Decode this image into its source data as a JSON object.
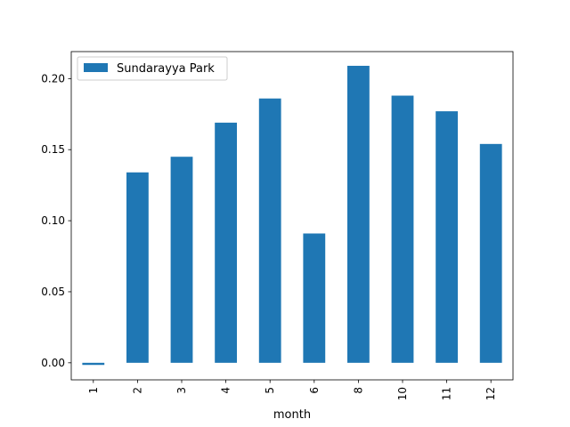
{
  "chart_data": {
    "type": "bar",
    "categories": [
      "1",
      "2",
      "3",
      "4",
      "5",
      "6",
      "8",
      "10",
      "11",
      "12"
    ],
    "series": [
      {
        "name": "Sundarayya Park",
        "values": [
          -0.0015,
          0.134,
          0.145,
          0.169,
          0.186,
          0.091,
          0.209,
          0.188,
          0.177,
          0.154
        ],
        "color": "#1f77b4"
      }
    ],
    "xlabel": "month",
    "ylabel": "",
    "ylim": [
      -0.012,
      0.219
    ],
    "yticks": [
      0.0,
      0.05,
      0.1,
      0.15,
      0.2
    ],
    "ytick_labels": [
      "0.00",
      "0.05",
      "0.10",
      "0.15",
      "0.20"
    ],
    "xtick_rotation": "vertical",
    "legend_position": "top-left",
    "grid": false
  }
}
